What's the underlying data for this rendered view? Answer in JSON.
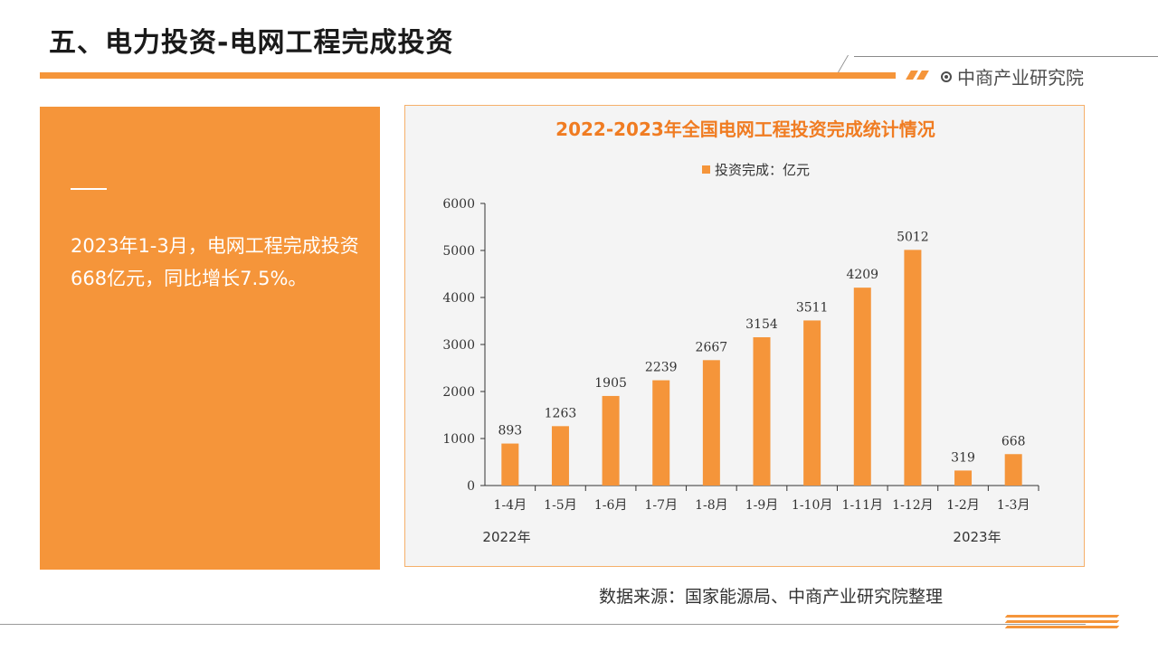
{
  "header": {
    "title": "五、电力投资-电网工程完成投资",
    "brand": "中商产业研究院"
  },
  "summary": {
    "text": "2023年1-3月，电网工程完成投资668亿元，同比增长7.5%。"
  },
  "source": "数据来源：国家能源局、中商产业研究院整理",
  "colors": {
    "accent": "#f5953a",
    "chart_title": "#f07c22",
    "panel": "#f5953a"
  },
  "chart_data": {
    "type": "bar",
    "title": "2022-2023年全国电网工程投资完成统计情况",
    "legend": [
      "投资完成：亿元"
    ],
    "legend_position": "top",
    "categories": [
      "1-4月",
      "1-5月",
      "1-6月",
      "1-7月",
      "1-8月",
      "1-9月",
      "1-10月",
      "1-11月",
      "1-12月",
      "1-2月",
      "1-3月"
    ],
    "series": [
      {
        "name": "投资完成：亿元",
        "values": [
          893,
          1263,
          1905,
          2239,
          2667,
          3154,
          3511,
          4209,
          5012,
          319,
          668
        ],
        "color": "#f5953a"
      }
    ],
    "year_labels": [
      "2022年",
      "2023年"
    ],
    "yticks": [
      "0",
      "1000",
      "2000",
      "3000",
      "4000",
      "5000",
      "6000"
    ],
    "ylim": [
      0,
      6000
    ],
    "grid": false
  }
}
